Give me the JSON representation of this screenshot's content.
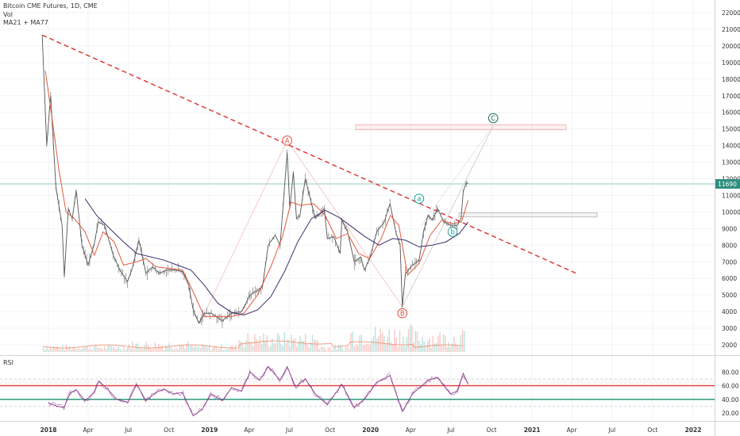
{
  "legend": {
    "title": "Bitcoin CME Futures, 1D, CME",
    "volume": "Vol",
    "ma": "MA21 + MA77"
  },
  "rsi_label": "RSI",
  "chart_data": {
    "type": "line",
    "title": "Bitcoin CME Futures, 1D, CME",
    "price_scale": {
      "ticks": [
        2000,
        3000,
        4000,
        5000,
        6000,
        7000,
        8000,
        9000,
        10000,
        11000,
        12000,
        13000,
        14000,
        15000,
        16000,
        17000,
        18000,
        19000,
        20000,
        21000,
        22000
      ],
      "last_price": 11690
    },
    "x_ticks": [
      "2018",
      "Apr",
      "Jul",
      "Oct",
      "2019",
      "Apr",
      "Jul",
      "Oct",
      "2020",
      "Apr",
      "Jul",
      "Oct",
      "2021",
      "Apr",
      "Jul",
      "Oct",
      "2022"
    ],
    "rsi_scale": {
      "ticks": [
        20.0,
        40.0,
        60.0,
        80.0
      ],
      "bands": [
        30,
        40,
        60,
        70
      ]
    },
    "series": [
      {
        "name": "price",
        "color": "#555555",
        "points": [
          [
            "2017-12-18",
            20650
          ],
          [
            "2017-12-28",
            14000
          ],
          [
            "2018-01-06",
            17000
          ],
          [
            "2018-01-18",
            11500
          ],
          [
            "2018-02-01",
            9200
          ],
          [
            "2018-02-06",
            6100
          ],
          [
            "2018-02-15",
            10200
          ],
          [
            "2018-02-24",
            9600
          ],
          [
            "2018-03-05",
            11300
          ],
          [
            "2018-03-18",
            8000
          ],
          [
            "2018-04-01",
            6800
          ],
          [
            "2018-04-15",
            8100
          ],
          [
            "2018-04-24",
            9400
          ],
          [
            "2018-05-08",
            9200
          ],
          [
            "2018-05-28",
            7400
          ],
          [
            "2018-06-12",
            6500
          ],
          [
            "2018-06-29",
            5800
          ],
          [
            "2018-07-10",
            6600
          ],
          [
            "2018-07-25",
            8300
          ],
          [
            "2018-08-10",
            6300
          ],
          [
            "2018-08-25",
            6700
          ],
          [
            "2018-09-10",
            6300
          ],
          [
            "2018-09-25",
            6500
          ],
          [
            "2018-10-15",
            6500
          ],
          [
            "2018-11-01",
            6400
          ],
          [
            "2018-11-15",
            5600
          ],
          [
            "2018-11-25",
            4100
          ],
          [
            "2018-12-08",
            3300
          ],
          [
            "2018-12-20",
            3900
          ],
          [
            "2019-01-05",
            3900
          ],
          [
            "2019-01-30",
            3450
          ],
          [
            "2019-02-20",
            3900
          ],
          [
            "2019-03-15",
            4000
          ],
          [
            "2019-04-03",
            5000
          ],
          [
            "2019-04-15",
            5200
          ],
          [
            "2019-05-01",
            5500
          ],
          [
            "2019-05-14",
            8000
          ],
          [
            "2019-05-30",
            8600
          ],
          [
            "2019-06-10",
            8000
          ],
          [
            "2019-06-26",
            13600
          ],
          [
            "2019-07-02",
            10200
          ],
          [
            "2019-07-10",
            12400
          ],
          [
            "2019-07-17",
            9600
          ],
          [
            "2019-07-25",
            9800
          ],
          [
            "2019-08-06",
            12000
          ],
          [
            "2019-08-29",
            9600
          ],
          [
            "2019-09-18",
            10200
          ],
          [
            "2019-09-25",
            8400
          ],
          [
            "2019-10-10",
            8500
          ],
          [
            "2019-10-24",
            7500
          ],
          [
            "2019-10-28",
            9500
          ],
          [
            "2019-11-10",
            8800
          ],
          [
            "2019-11-25",
            7000
          ],
          [
            "2019-12-10",
            7300
          ],
          [
            "2019-12-18",
            6500
          ],
          [
            "2019-12-30",
            7200
          ],
          [
            "2020-01-15",
            8800
          ],
          [
            "2020-02-01",
            9400
          ],
          [
            "2020-02-14",
            10500
          ],
          [
            "2020-02-28",
            8700
          ],
          [
            "2020-03-08",
            8000
          ],
          [
            "2020-03-13",
            4300
          ],
          [
            "2020-03-20",
            6300
          ],
          [
            "2020-04-05",
            6800
          ],
          [
            "2020-04-20",
            7100
          ],
          [
            "2020-04-30",
            8800
          ],
          [
            "2020-05-10",
            9800
          ],
          [
            "2020-05-20",
            9500
          ],
          [
            "2020-06-01",
            10200
          ],
          [
            "2020-06-15",
            9400
          ],
          [
            "2020-06-30",
            9200
          ],
          [
            "2020-07-15",
            9200
          ],
          [
            "2020-07-24",
            9600
          ],
          [
            "2020-07-29",
            11200
          ],
          [
            "2020-08-05",
            11800
          ],
          [
            "2020-08-09",
            11690
          ]
        ]
      },
      {
        "name": "MA21",
        "color": "#e05a3a",
        "points": [
          [
            "2017-12-25",
            18500
          ],
          [
            "2018-01-10",
            15500
          ],
          [
            "2018-01-25",
            12500
          ],
          [
            "2018-02-10",
            10000
          ],
          [
            "2018-03-01",
            9600
          ],
          [
            "2018-03-25",
            8800
          ],
          [
            "2018-04-15",
            7400
          ],
          [
            "2018-05-05",
            8800
          ],
          [
            "2018-05-30",
            8200
          ],
          [
            "2018-06-20",
            6800
          ],
          [
            "2018-07-20",
            7000
          ],
          [
            "2018-08-10",
            7200
          ],
          [
            "2018-09-01",
            6700
          ],
          [
            "2018-10-01",
            6600
          ],
          [
            "2018-11-01",
            6500
          ],
          [
            "2018-11-25",
            5200
          ],
          [
            "2018-12-20",
            3700
          ],
          [
            "2019-01-20",
            3700
          ],
          [
            "2019-02-20",
            3700
          ],
          [
            "2019-03-20",
            3900
          ],
          [
            "2019-04-20",
            5000
          ],
          [
            "2019-05-20",
            6700
          ],
          [
            "2019-06-15",
            8500
          ],
          [
            "2019-07-05",
            10600
          ],
          [
            "2019-07-25",
            10400
          ],
          [
            "2019-08-25",
            10500
          ],
          [
            "2019-09-20",
            9800
          ],
          [
            "2019-10-15",
            8400
          ],
          [
            "2019-11-10",
            8700
          ],
          [
            "2019-12-05",
            7500
          ],
          [
            "2019-12-30",
            7200
          ],
          [
            "2020-01-25",
            8400
          ],
          [
            "2020-02-15",
            9800
          ],
          [
            "2020-03-05",
            9200
          ],
          [
            "2020-03-25",
            6200
          ],
          [
            "2020-04-20",
            6900
          ],
          [
            "2020-05-15",
            8600
          ],
          [
            "2020-06-10",
            9500
          ],
          [
            "2020-07-05",
            9300
          ],
          [
            "2020-07-25",
            9400
          ],
          [
            "2020-08-09",
            10700
          ]
        ]
      },
      {
        "name": "MA77",
        "color": "#3d2c6e",
        "points": [
          [
            "2018-03-25",
            10800
          ],
          [
            "2018-04-20",
            9800
          ],
          [
            "2018-05-20",
            9000
          ],
          [
            "2018-06-20",
            8200
          ],
          [
            "2018-07-20",
            7500
          ],
          [
            "2018-08-20",
            7300
          ],
          [
            "2018-09-20",
            7100
          ],
          [
            "2018-10-20",
            6800
          ],
          [
            "2018-11-20",
            6500
          ],
          [
            "2018-12-20",
            5600
          ],
          [
            "2019-01-20",
            4500
          ],
          [
            "2019-02-20",
            3950
          ],
          [
            "2019-03-20",
            3800
          ],
          [
            "2019-04-20",
            4100
          ],
          [
            "2019-05-20",
            4900
          ],
          [
            "2019-06-20",
            6400
          ],
          [
            "2019-07-20",
            8200
          ],
          [
            "2019-08-20",
            9600
          ],
          [
            "2019-09-20",
            10100
          ],
          [
            "2019-10-20",
            9700
          ],
          [
            "2019-11-20",
            9100
          ],
          [
            "2019-12-20",
            8500
          ],
          [
            "2020-01-20",
            8000
          ],
          [
            "2020-02-20",
            8400
          ],
          [
            "2020-03-20",
            8300
          ],
          [
            "2020-04-20",
            7900
          ],
          [
            "2020-05-20",
            8000
          ],
          [
            "2020-06-20",
            8200
          ],
          [
            "2020-07-20",
            8700
          ],
          [
            "2020-08-09",
            9400
          ]
        ]
      }
    ],
    "rsi": {
      "name": "RSI",
      "color": "#8e3a8e",
      "points": [
        [
          "2018-01-01",
          35
        ],
        [
          "2018-01-20",
          30
        ],
        [
          "2018-02-05",
          28
        ],
        [
          "2018-02-20",
          50
        ],
        [
          "2018-03-05",
          54
        ],
        [
          "2018-03-25",
          38
        ],
        [
          "2018-04-15",
          50
        ],
        [
          "2018-04-25",
          67
        ],
        [
          "2018-05-15",
          55
        ],
        [
          "2018-06-05",
          40
        ],
        [
          "2018-06-30",
          36
        ],
        [
          "2018-07-20",
          62
        ],
        [
          "2018-08-10",
          38
        ],
        [
          "2018-09-01",
          50
        ],
        [
          "2018-09-20",
          55
        ],
        [
          "2018-10-10",
          48
        ],
        [
          "2018-11-01",
          50
        ],
        [
          "2018-11-15",
          30
        ],
        [
          "2018-11-25",
          16
        ],
        [
          "2018-12-15",
          25
        ],
        [
          "2019-01-05",
          48
        ],
        [
          "2019-01-30",
          38
        ],
        [
          "2019-02-20",
          57
        ],
        [
          "2019-03-15",
          52
        ],
        [
          "2019-04-03",
          80
        ],
        [
          "2019-04-25",
          68
        ],
        [
          "2019-05-14",
          88
        ],
        [
          "2019-06-10",
          68
        ],
        [
          "2019-06-26",
          88
        ],
        [
          "2019-07-15",
          58
        ],
        [
          "2019-08-06",
          70
        ],
        [
          "2019-08-29",
          48
        ],
        [
          "2019-09-25",
          32
        ],
        [
          "2019-10-28",
          62
        ],
        [
          "2019-11-25",
          28
        ],
        [
          "2019-12-18",
          40
        ],
        [
          "2020-01-15",
          65
        ],
        [
          "2020-02-14",
          75
        ],
        [
          "2020-03-13",
          22
        ],
        [
          "2020-04-05",
          48
        ],
        [
          "2020-05-10",
          68
        ],
        [
          "2020-06-01",
          72
        ],
        [
          "2020-06-30",
          48
        ],
        [
          "2020-07-15",
          52
        ],
        [
          "2020-07-29",
          78
        ],
        [
          "2020-08-09",
          62
        ]
      ]
    },
    "annotations": [
      {
        "label": "A",
        "color": "#e74c3c",
        "date": "2019-06-26",
        "price": 14300
      },
      {
        "label": "B",
        "color": "#e74c3c",
        "date": "2020-03-13",
        "price": 3900
      },
      {
        "label": "C",
        "color": "#1a6e4a",
        "date": "2020-10-05",
        "price": 15650
      },
      {
        "label": "a",
        "color": "#1aa39a",
        "date": "2020-04-20",
        "price": 10800
      },
      {
        "label": "b",
        "color": "#1aa39a",
        "date": "2020-07-05",
        "price": 8800
      }
    ]
  }
}
